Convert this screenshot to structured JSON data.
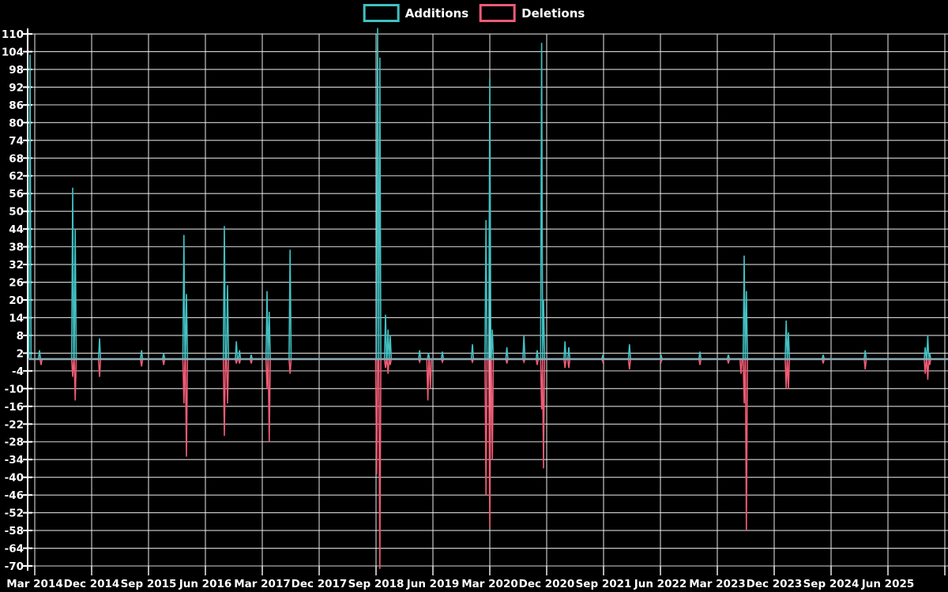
{
  "chart_data": {
    "type": "line",
    "title": "",
    "xlabel": "",
    "ylabel": "",
    "x_unit": "months since Mar 2014 (fractional = mid-month events)",
    "x_tick_labels": [
      "Mar 2014",
      "Dec 2014",
      "Sep 2015",
      "Jun 2016",
      "Mar 2017",
      "Dec 2017",
      "Sep 2018",
      "Jun 2019",
      "Mar 2020",
      "Dec 2020",
      "Sep 2021",
      "Jun 2022",
      "Mar 2023",
      "Dec 2023",
      "Sep 2024",
      "Jun 2025"
    ],
    "x_tick_months": [
      0,
      9,
      18,
      27,
      36,
      45,
      54,
      63,
      72,
      81,
      90,
      99,
      108,
      117,
      126,
      135
    ],
    "x_grid_months": [
      0,
      9,
      18,
      27,
      36,
      45,
      54,
      63,
      72,
      81,
      90,
      99,
      108,
      117,
      126,
      135,
      144
    ],
    "x_range_months": [
      -1.1,
      144.4
    ],
    "y_ticks": [
      110,
      104,
      98,
      92,
      86,
      80,
      74,
      68,
      62,
      56,
      50,
      44,
      38,
      32,
      26,
      20,
      14,
      8,
      2,
      -4,
      -10,
      -16,
      -22,
      -28,
      -34,
      -40,
      -46,
      -52,
      -58,
      -64,
      -70
    ],
    "ylim": [
      -70,
      110
    ],
    "baseline_value": 0,
    "grid": true,
    "legend_position": "top-center",
    "series": [
      {
        "name": "Additions",
        "color": "#42c0c2",
        "rest_value": 0,
        "spikes": [
          [
            -0.75,
            103
          ],
          [
            0.75,
            3
          ],
          [
            6.0,
            58
          ],
          [
            6.4,
            44
          ],
          [
            10.25,
            7
          ],
          [
            16.9,
            3
          ],
          [
            20.4,
            2
          ],
          [
            23.6,
            42
          ],
          [
            24.0,
            22
          ],
          [
            30.0,
            45
          ],
          [
            30.5,
            25
          ],
          [
            31.9,
            6
          ],
          [
            32.4,
            3
          ],
          [
            34.25,
            1.5
          ],
          [
            36.75,
            23
          ],
          [
            37.1,
            16
          ],
          [
            40.4,
            37
          ],
          [
            54.25,
            112
          ],
          [
            54.6,
            102
          ],
          [
            55.5,
            15
          ],
          [
            55.9,
            10
          ],
          [
            56.25,
            8
          ],
          [
            60.9,
            3
          ],
          [
            62.3,
            2
          ],
          [
            64.5,
            2.5
          ],
          [
            69.25,
            5
          ],
          [
            71.4,
            47
          ],
          [
            72.0,
            95
          ],
          [
            72.4,
            10
          ],
          [
            74.7,
            4
          ],
          [
            77.4,
            8
          ],
          [
            79.5,
            3
          ],
          [
            80.2,
            107
          ],
          [
            80.5,
            20
          ],
          [
            83.9,
            6
          ],
          [
            84.5,
            4
          ],
          [
            89.9,
            1.5
          ],
          [
            94.1,
            5
          ],
          [
            99.1,
            1.5
          ],
          [
            105.25,
            2.5
          ],
          [
            109.75,
            1.5
          ],
          [
            112.25,
            35
          ],
          [
            112.6,
            23
          ],
          [
            118.9,
            13
          ],
          [
            119.25,
            9
          ],
          [
            124.75,
            1.5
          ],
          [
            131.4,
            3
          ],
          [
            140.9,
            4
          ],
          [
            141.3,
            8
          ],
          [
            141.6,
            2
          ]
        ]
      },
      {
        "name": "Deletions",
        "color": "#ef5b74",
        "rest_value": 0,
        "spikes": [
          [
            1.0,
            -2
          ],
          [
            6.0,
            -6
          ],
          [
            6.4,
            -14
          ],
          [
            10.25,
            -6
          ],
          [
            16.9,
            -2.5
          ],
          [
            20.4,
            -2
          ],
          [
            23.6,
            -15
          ],
          [
            24.0,
            -33
          ],
          [
            30.0,
            -26
          ],
          [
            30.5,
            -15
          ],
          [
            31.9,
            -1.5
          ],
          [
            32.4,
            -1.5
          ],
          [
            34.25,
            -1.5
          ],
          [
            36.75,
            -10
          ],
          [
            37.1,
            -28
          ],
          [
            40.4,
            -5
          ],
          [
            54.1,
            -39
          ],
          [
            54.6,
            -71
          ],
          [
            55.5,
            -3
          ],
          [
            55.9,
            -5
          ],
          [
            56.25,
            -2
          ],
          [
            60.9,
            -1
          ],
          [
            62.2,
            -14
          ],
          [
            62.6,
            -10
          ],
          [
            64.5,
            -1
          ],
          [
            69.25,
            -1
          ],
          [
            71.4,
            -46
          ],
          [
            72.0,
            -57
          ],
          [
            72.4,
            -34
          ],
          [
            74.7,
            -1.5
          ],
          [
            77.4,
            -1
          ],
          [
            79.5,
            -2
          ],
          [
            80.2,
            -17
          ],
          [
            80.5,
            -37
          ],
          [
            83.9,
            -3
          ],
          [
            84.5,
            -3
          ],
          [
            89.9,
            -1
          ],
          [
            94.1,
            -3.5
          ],
          [
            99.1,
            -1
          ],
          [
            105.25,
            -2
          ],
          [
            109.75,
            -1.5
          ],
          [
            111.75,
            -5
          ],
          [
            112.25,
            -15
          ],
          [
            112.6,
            -58
          ],
          [
            118.9,
            -10
          ],
          [
            119.25,
            -10
          ],
          [
            124.75,
            -1.5
          ],
          [
            131.4,
            -3.5
          ],
          [
            140.9,
            -5
          ],
          [
            141.3,
            -7
          ],
          [
            141.6,
            -2
          ]
        ]
      }
    ]
  },
  "colors": {
    "background": "#000000",
    "grid_line": "#e8e8e8",
    "axis_line": "#ffffff",
    "tick_text": "#ffffff",
    "zero_line": "#8aa6b2",
    "additions": "#42c0c2",
    "deletions": "#ef5b74"
  },
  "legend": {
    "items": [
      {
        "label": "Additions",
        "swatch": "additions-swatch"
      },
      {
        "label": "Deletions",
        "swatch": "deletions-swatch"
      }
    ]
  }
}
